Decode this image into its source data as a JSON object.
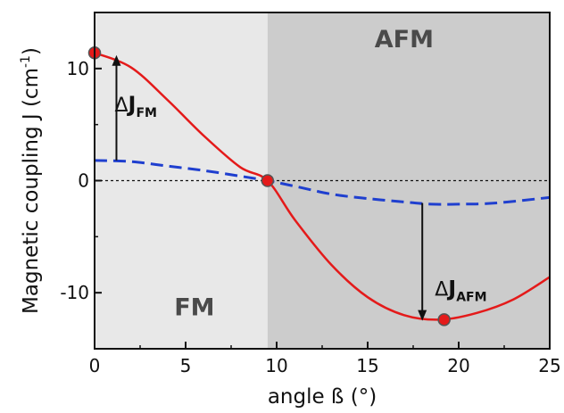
{
  "chart_data": {
    "type": "line",
    "xlabel": "angle ß (°)",
    "ylabel": "Magnetic coupling J (cm",
    "ylabel_sup": "-1",
    "ylabel_close": ")",
    "xlim": [
      0,
      25
    ],
    "ylim": [
      -15,
      15
    ],
    "xticks": [
      0,
      5,
      10,
      15,
      20,
      25
    ],
    "xtick_labels": [
      "0",
      "5",
      "10",
      "15",
      "20",
      "25"
    ],
    "yticks": [
      -10,
      0,
      10
    ],
    "ytick_labels": [
      "-10",
      "0",
      "10"
    ],
    "grid": false,
    "legend": "none",
    "regions": [
      {
        "label": "FM",
        "x_range": [
          0,
          9.5
        ],
        "color": "#e8e8e8"
      },
      {
        "label": "AFM",
        "x_range": [
          9.5,
          25
        ],
        "color": "#cccccc"
      }
    ],
    "zero_line": {
      "y": 0,
      "style": "dotted"
    },
    "series": [
      {
        "style": "solid",
        "color": "#e41a1a",
        "x": [
          0,
          2,
          4,
          6,
          8,
          9.5,
          11,
          13,
          15,
          17,
          19,
          21,
          23,
          25
        ],
        "y": [
          11.4,
          10.1,
          7.2,
          4.0,
          1.2,
          0.0,
          -3.5,
          -7.5,
          -10.4,
          -12.0,
          -12.4,
          -11.8,
          -10.6,
          -8.6
        ]
      },
      {
        "style": "dashed",
        "color": "#1f3fcf",
        "x": [
          0,
          2,
          4,
          6,
          8,
          9.5,
          11,
          13,
          15,
          17,
          18.5,
          20,
          22,
          25
        ],
        "y": [
          1.8,
          1.7,
          1.3,
          0.9,
          0.4,
          0.0,
          -0.5,
          -1.2,
          -1.6,
          -1.9,
          -2.1,
          -2.1,
          -2.0,
          -1.5
        ]
      }
    ],
    "markers": [
      {
        "x": 0,
        "y": 11.4
      },
      {
        "x": 9.5,
        "y": 0
      },
      {
        "x": 19.2,
        "y": -12.4
      }
    ],
    "annotations": [
      {
        "delta": "Δ",
        "symbol": "J",
        "subscript": "FM",
        "arrow_x": 1.2,
        "arrow_from": 1.8,
        "arrow_to": 11.2
      },
      {
        "delta": "Δ",
        "symbol": "J",
        "subscript": "AFM",
        "arrow_x": 18,
        "arrow_from": -2.0,
        "arrow_to": -12.5
      }
    ],
    "colors": {
      "fm_region": "#e8e8e8",
      "afm_region": "#cccccc",
      "solid_line": "#e41a1a",
      "dashed_line": "#1f3fcf",
      "marker": "#e41a1a",
      "marker_edge": "#555555"
    }
  }
}
